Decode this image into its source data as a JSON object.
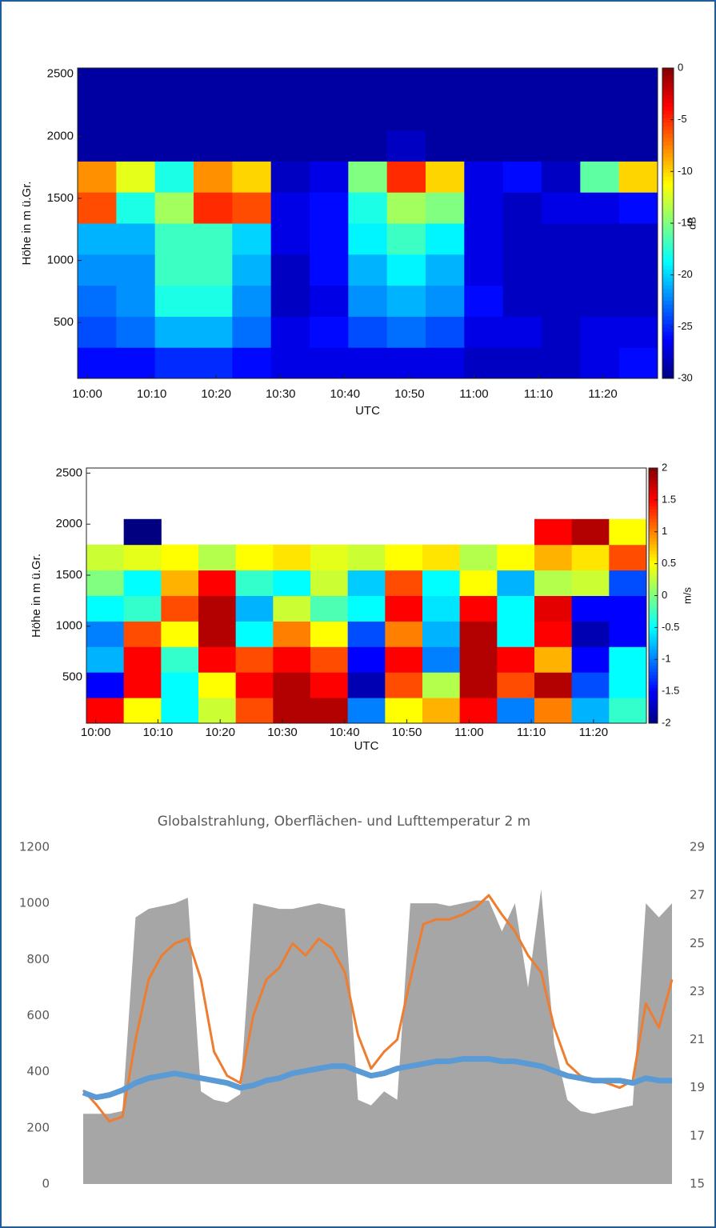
{
  "chart_data": [
    {
      "type": "heatmap",
      "ylabel": "Höhe in m ü.Gr.",
      "xlabel": "UTC",
      "xlim": [
        -1.5,
        88.5
      ],
      "ylim": [
        50,
        2550
      ],
      "xticks": [
        {
          "value": 0,
          "label": "10:00"
        },
        {
          "value": 10,
          "label": "10:10"
        },
        {
          "value": 20,
          "label": "10:20"
        },
        {
          "value": 30,
          "label": "10:30"
        },
        {
          "value": 40,
          "label": "10:40"
        },
        {
          "value": 50,
          "label": "10:50"
        },
        {
          "value": 60,
          "label": "11:00"
        },
        {
          "value": 70,
          "label": "11:10"
        },
        {
          "value": 80,
          "label": "11:20"
        }
      ],
      "yticks": [
        500,
        1000,
        1500,
        2000,
        2500
      ],
      "xbins": [
        -1.5,
        4.5,
        10.5,
        16.5,
        22.5,
        28.5,
        34.5,
        40.5,
        46.5,
        52.5,
        58.5,
        64.5,
        70.5,
        76.5,
        82.5,
        88.5
      ],
      "ybins": [
        50,
        300,
        550,
        800,
        1050,
        1300,
        1550,
        1800,
        2050,
        2300,
        2550
      ],
      "colormap": "jet",
      "colorbar": {
        "label": "dB",
        "lim": [
          -30,
          0
        ],
        "ticks": [
          0,
          -5,
          -10,
          -15,
          -20,
          -25,
          -30
        ]
      },
      "z": [
        [
          -26,
          -26,
          -25,
          -25,
          -26,
          -27,
          -27,
          -27,
          -27,
          -27,
          -28,
          -28,
          -28,
          -27,
          -26
        ],
        [
          -24,
          -23,
          -21,
          -21,
          -23,
          -27,
          -26,
          -24,
          -23,
          -24,
          -27,
          -27,
          -28,
          -27,
          -27
        ],
        [
          -23,
          -22,
          -18,
          -18,
          -22,
          -28,
          -27,
          -22,
          -21,
          -22,
          -26,
          -28,
          -28,
          -28,
          -28
        ],
        [
          -22,
          -22,
          -17,
          -17,
          -21,
          -28,
          -26,
          -21,
          -19,
          -21,
          -27,
          -28,
          -28,
          -28,
          -28
        ],
        [
          -21,
          -21,
          -17,
          -17,
          -20,
          -27,
          -26,
          -19,
          -17,
          -19,
          -27,
          -28,
          -28,
          -28,
          -28
        ],
        [
          -6,
          -18,
          -14,
          -5,
          -6,
          -27,
          -26,
          -18,
          -14,
          -15,
          -27,
          -28,
          -27,
          -27,
          -26
        ],
        [
          -8,
          -12,
          -18,
          -8,
          -10,
          -28,
          -27,
          -15,
          -5,
          -10,
          -27,
          -26,
          -28,
          -16,
          -10
        ],
        [
          -29,
          -29,
          -29,
          -29,
          -29,
          -29,
          -29,
          -29,
          -28,
          -29,
          -29,
          -29,
          -29,
          -29,
          -29
        ],
        [
          -29,
          -29,
          -29,
          -29,
          -29,
          -29,
          -29,
          -29,
          -29,
          -29,
          -29,
          -29,
          -29,
          -29,
          -29
        ],
        [
          -29,
          -29,
          -29,
          -29,
          -29,
          -29,
          -29,
          -29,
          -29,
          -29,
          -29,
          -29,
          -29,
          -29,
          -29
        ]
      ]
    },
    {
      "type": "heatmap",
      "ylabel": "Höhe in m ü.Gr.",
      "xlabel": "UTC",
      "xlim": [
        -1.5,
        88.5
      ],
      "ylim": [
        50,
        2550
      ],
      "xticks": [
        {
          "value": 0,
          "label": "10:00"
        },
        {
          "value": 10,
          "label": "10:10"
        },
        {
          "value": 20,
          "label": "10:20"
        },
        {
          "value": 30,
          "label": "10:30"
        },
        {
          "value": 40,
          "label": "10:40"
        },
        {
          "value": 50,
          "label": "10:50"
        },
        {
          "value": 60,
          "label": "11:00"
        },
        {
          "value": 70,
          "label": "11:10"
        },
        {
          "value": 80,
          "label": "11:20"
        }
      ],
      "yticks": [
        500,
        1000,
        1500,
        2000,
        2500
      ],
      "xbins": [
        -1.5,
        4.5,
        10.5,
        16.5,
        22.5,
        28.5,
        34.5,
        40.5,
        46.5,
        52.5,
        58.5,
        64.5,
        70.5,
        76.5,
        82.5,
        88.5
      ],
      "ybins": [
        50,
        300,
        550,
        800,
        1050,
        1300,
        1550,
        1800,
        2050,
        2300,
        2550
      ],
      "colormap": "jet",
      "colorbar": {
        "label": "m/s",
        "lim": [
          -2,
          2
        ],
        "ticks": [
          2,
          1.5,
          1,
          0.5,
          0,
          -0.5,
          -1,
          -1.5,
          -2
        ]
      },
      "z": [
        [
          1.5,
          0.5,
          -0.5,
          0.3,
          1.2,
          1.8,
          1.8,
          -1.0,
          0.5,
          0.8,
          1.5,
          -1.0,
          1.0,
          -0.8,
          -0.3
        ],
        [
          -1.5,
          1.5,
          -0.5,
          0.5,
          1.5,
          1.8,
          1.5,
          -1.8,
          1.2,
          0.2,
          1.8,
          1.2,
          1.8,
          -1.2,
          -0.5
        ],
        [
          -0.8,
          1.5,
          -0.3,
          1.5,
          1.2,
          1.5,
          1.2,
          -1.5,
          1.5,
          -1.0,
          1.8,
          1.5,
          0.8,
          -1.5,
          -0.5
        ],
        [
          -1.0,
          1.2,
          0.5,
          1.8,
          -0.5,
          1.0,
          0.5,
          -1.2,
          1.0,
          -0.8,
          1.8,
          -0.5,
          1.5,
          -1.8,
          -1.5
        ],
        [
          -0.5,
          -0.3,
          1.2,
          1.8,
          -0.8,
          0.3,
          -0.2,
          -0.5,
          1.5,
          -0.6,
          1.5,
          -0.5,
          1.6,
          -1.5,
          -1.5
        ],
        [
          0.0,
          -0.5,
          0.8,
          1.5,
          -0.3,
          -0.5,
          0.3,
          -0.7,
          1.2,
          -0.5,
          0.5,
          -0.8,
          0.2,
          0.3,
          -1.2
        ],
        [
          0.3,
          0.4,
          0.5,
          0.2,
          0.5,
          0.6,
          0.4,
          0.3,
          0.5,
          0.6,
          0.2,
          0.5,
          0.8,
          0.6,
          1.2
        ],
        [
          null,
          -2,
          null,
          null,
          null,
          null,
          null,
          null,
          null,
          null,
          null,
          null,
          1.5,
          1.8,
          0.5
        ],
        [
          null,
          null,
          null,
          null,
          null,
          null,
          null,
          null,
          null,
          null,
          null,
          null,
          null,
          null,
          null
        ],
        [
          null,
          null,
          null,
          null,
          null,
          null,
          null,
          null,
          null,
          null,
          null,
          null,
          null,
          null,
          null
        ]
      ]
    },
    {
      "type": "combo",
      "title": "Globalstrahlung, Oberflächen- und Lufttemperatur 2 m",
      "categories": [
        null,
        null,
        null,
        null,
        null,
        null,
        null,
        null,
        null,
        null,
        null,
        null,
        null,
        null,
        null,
        null,
        null,
        null,
        null,
        null,
        null,
        null,
        null,
        null,
        null,
        null,
        null,
        null,
        null,
        null,
        null,
        null,
        null,
        null,
        null,
        null,
        null,
        null,
        null,
        null,
        null,
        null,
        null,
        null,
        null,
        null
      ],
      "ylim": [
        0,
        1200
      ],
      "yticks": [
        0,
        200,
        400,
        600,
        800,
        1000,
        1200
      ],
      "y2lim": [
        15,
        29
      ],
      "y2ticks": [
        15,
        17,
        19,
        21,
        23,
        25,
        27,
        29
      ],
      "series": [
        {
          "kind": "area",
          "color": "#a6a6a6",
          "values": [
            250,
            250,
            250,
            260,
            950,
            980,
            990,
            1000,
            1020,
            330,
            300,
            290,
            320,
            1000,
            990,
            980,
            980,
            990,
            1000,
            990,
            980,
            300,
            280,
            330,
            300,
            1000,
            1000,
            1000,
            990,
            1000,
            1010,
            1010,
            900,
            1000,
            700,
            1050,
            500,
            300,
            260,
            250,
            260,
            270,
            280,
            1000,
            950,
            1000
          ]
        },
        {
          "kind": "line",
          "axis": "y2",
          "color": "#ed7d31",
          "values": [
            18.9,
            18.3,
            17.6,
            17.8,
            21,
            23.5,
            24.5,
            25,
            25.2,
            23.5,
            20.5,
            19.5,
            19.2,
            22,
            23.5,
            24,
            25,
            24.5,
            25.2,
            24.8,
            23.8,
            21.2,
            19.8,
            20.5,
            21,
            23.5,
            25.8,
            26,
            26,
            26.2,
            26.5,
            27,
            26.2,
            25.5,
            24.5,
            23.8,
            21.5,
            20,
            19.5,
            19.3,
            19.2,
            19,
            19.3,
            22.5,
            21.5,
            23.5
          ]
        },
        {
          "kind": "line",
          "axis": "y2",
          "color": "#5b9bd5",
          "values": [
            18.8,
            18.6,
            18.7,
            18.9,
            19.2,
            19.4,
            19.5,
            19.6,
            19.5,
            19.4,
            19.3,
            19.2,
            19.0,
            19.1,
            19.3,
            19.4,
            19.6,
            19.7,
            19.8,
            19.9,
            19.9,
            19.7,
            19.5,
            19.6,
            19.8,
            19.9,
            20,
            20.1,
            20.1,
            20.2,
            20.2,
            20.2,
            20.1,
            20.1,
            20,
            19.9,
            19.7,
            19.5,
            19.4,
            19.3,
            19.3,
            19.3,
            19.2,
            19.4,
            19.3,
            19.3
          ]
        }
      ]
    }
  ]
}
